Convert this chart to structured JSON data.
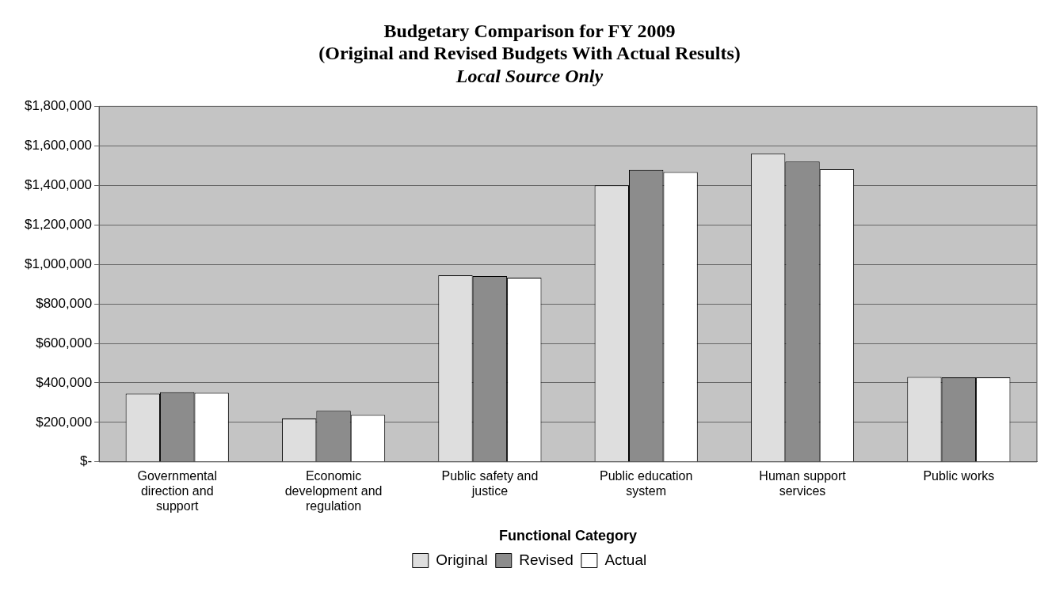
{
  "chart_data": {
    "type": "bar",
    "title": "Budgetary Comparison for FY 2009\n(Original and Revised Budgets With Actual Results)",
    "subtitle": "Local Source Only",
    "xlabel": "Functional Category",
    "categories": [
      "Governmental direction and support",
      "Economic development and regulation",
      "Public safety and justice",
      "Public education system",
      "Human support services",
      "Public works"
    ],
    "series": [
      {
        "name": "Original",
        "color": "#dedede",
        "values": [
          346000,
          219000,
          944000,
          1400000,
          1560000,
          430000
        ]
      },
      {
        "name": "Revised",
        "color": "#8c8c8c",
        "values": [
          353000,
          259000,
          940000,
          1478000,
          1520000,
          428000
        ]
      },
      {
        "name": "Actual",
        "color": "#ffffff",
        "values": [
          350000,
          238000,
          932000,
          1467000,
          1481000,
          428000
        ]
      }
    ],
    "ylim": [
      0,
      1800000
    ],
    "yticks": [
      {
        "value": 0,
        "label": "$-"
      },
      {
        "value": 200000,
        "label": "$200,000"
      },
      {
        "value": 400000,
        "label": "$400,000"
      },
      {
        "value": 600000,
        "label": "$600,000"
      },
      {
        "value": 800000,
        "label": "$800,000"
      },
      {
        "value": 1000000,
        "label": "$1,000,000"
      },
      {
        "value": 1200000,
        "label": "$1,200,000"
      },
      {
        "value": 1400000,
        "label": "$1,400,000"
      },
      {
        "value": 1600000,
        "label": "$1,600,000"
      },
      {
        "value": 1800000,
        "label": "$1,800,000"
      }
    ],
    "grid": "y",
    "legend": "bottom"
  }
}
